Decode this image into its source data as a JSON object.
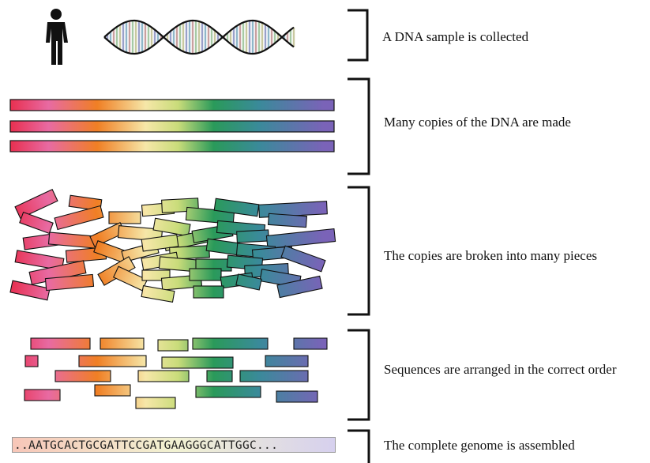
{
  "steps": [
    {
      "label": "A DNA sample is collected"
    },
    {
      "label": "Many copies of the DNA are made"
    },
    {
      "label": "The copies are broken into many pieces"
    },
    {
      "label": "Sequences are arranged in the correct order"
    },
    {
      "label": "The complete genome is assembled"
    }
  ],
  "genome_sequence": "..AATGCACTGCGATTCCGATGAAGGGCATTGGC...",
  "colors": {
    "spectrum": [
      "#e8203a",
      "#e86aa2",
      "#f07f24",
      "#f3d88a",
      "#2a9a5a",
      "#3a8a9a",
      "#6a5cae",
      "#7a63b8"
    ],
    "outline": "#111111",
    "text": "#111111"
  },
  "icons": [
    "person-icon",
    "dna-helix-icon"
  ]
}
